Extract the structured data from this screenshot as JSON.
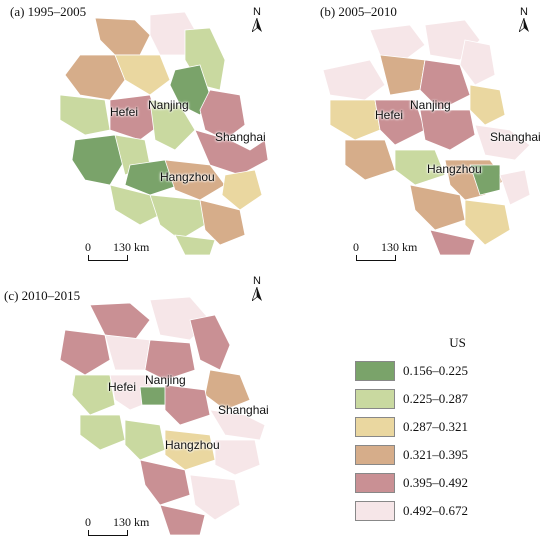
{
  "panels": [
    {
      "title": "(a) 1995–2005",
      "scale_label": "130 km",
      "scale_zero": "0",
      "north": "N",
      "cities": [
        "Hefei",
        "Nanjing",
        "Shanghai",
        "Hangzhou"
      ]
    },
    {
      "title": "(b) 2005–2010",
      "scale_label": "130 km",
      "scale_zero": "0",
      "north": "N",
      "cities": [
        "Hefei",
        "Nanjing",
        "Shanghai",
        "Hangzhou"
      ]
    },
    {
      "title": "(c) 2010–2015",
      "scale_label": "130 km",
      "scale_zero": "0",
      "north": "N",
      "cities": [
        "Hefei",
        "Nanjing",
        "Shanghai",
        "Hangzhou"
      ]
    }
  ],
  "legend": {
    "title": "US",
    "classes": [
      {
        "label": "0.156–0.225",
        "color": "#7aa36a"
      },
      {
        "label": "0.225–0.287",
        "color": "#c9d9a0"
      },
      {
        "label": "0.287–0.321",
        "color": "#ead7a0"
      },
      {
        "label": "0.321–0.395",
        "color": "#d6ad8a"
      },
      {
        "label": "0.395–0.492",
        "color": "#c99094"
      },
      {
        "label": "0.492–0.672",
        "color": "#f6e6e8"
      }
    ]
  },
  "icons": {
    "north_arrow": "north-arrow-icon"
  }
}
